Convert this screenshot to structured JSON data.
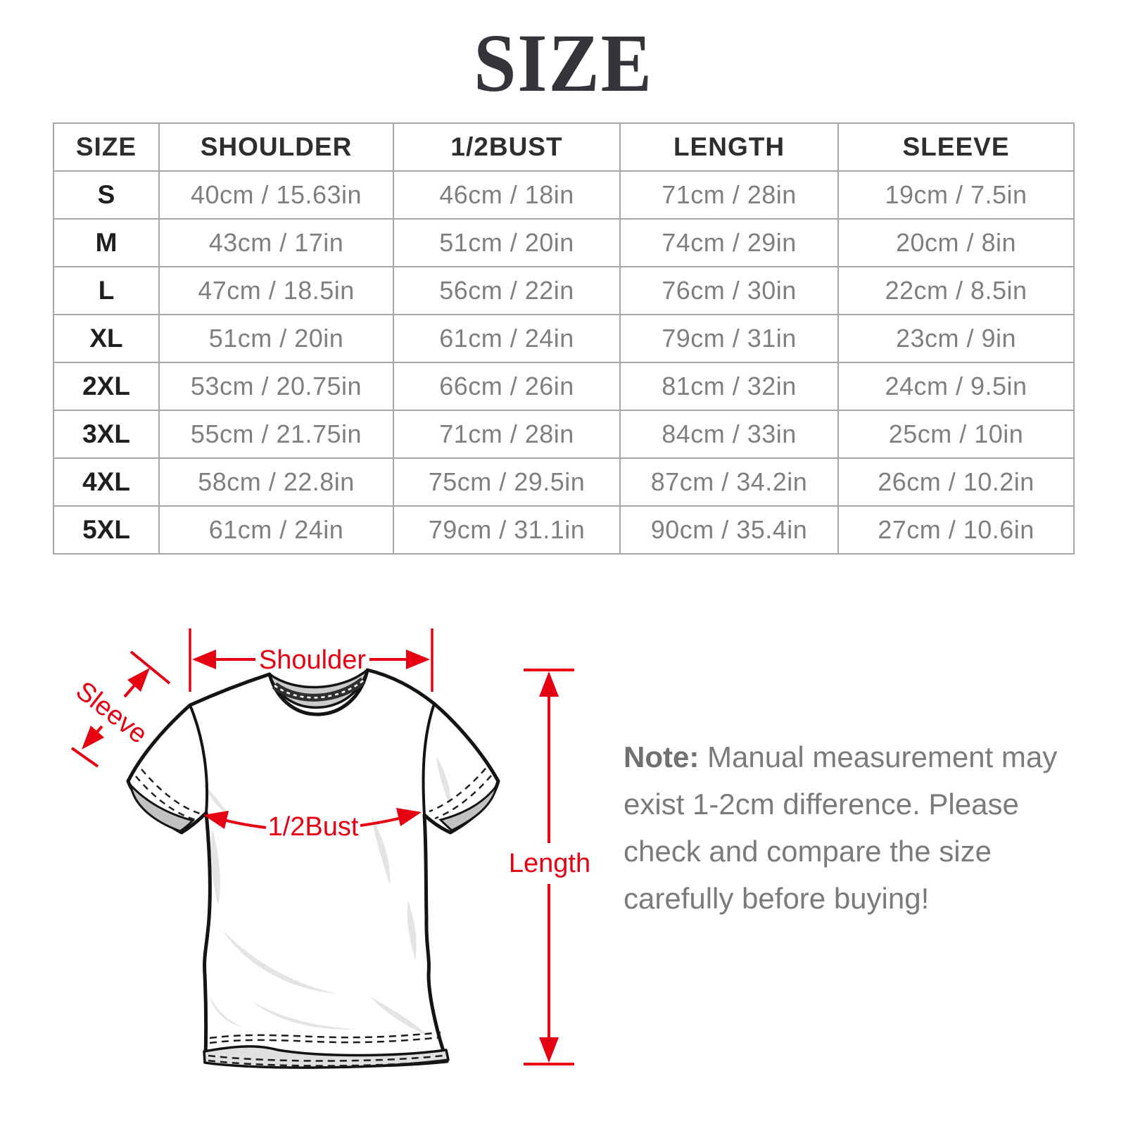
{
  "title": "SIZE",
  "table": {
    "columns": [
      "SIZE",
      "SHOULDER",
      "1/2BUST",
      "LENGTH",
      "SLEEVE"
    ],
    "rows": [
      {
        "size": "S",
        "shoulder": "40cm / 15.63in",
        "bust": "46cm / 18in",
        "length": "71cm / 28in",
        "sleeve": "19cm / 7.5in"
      },
      {
        "size": "M",
        "shoulder": "43cm / 17in",
        "bust": "51cm / 20in",
        "length": "74cm / 29in",
        "sleeve": "20cm / 8in"
      },
      {
        "size": "L",
        "shoulder": "47cm / 18.5in",
        "bust": "56cm / 22in",
        "length": "76cm / 30in",
        "sleeve": "22cm / 8.5in"
      },
      {
        "size": "XL",
        "shoulder": "51cm / 20in",
        "bust": "61cm / 24in",
        "length": "79cm / 31in",
        "sleeve": "23cm / 9in"
      },
      {
        "size": "2XL",
        "shoulder": "53cm / 20.75in",
        "bust": "66cm / 26in",
        "length": "81cm / 32in",
        "sleeve": "24cm / 9.5in"
      },
      {
        "size": "3XL",
        "shoulder": "55cm / 21.75in",
        "bust": "71cm / 28in",
        "length": "84cm / 33in",
        "sleeve": "25cm / 10in"
      },
      {
        "size": "4XL",
        "shoulder": "58cm / 22.8in",
        "bust": "75cm / 29.5in",
        "length": "87cm / 34.2in",
        "sleeve": "26cm / 10.2in"
      },
      {
        "size": "5XL",
        "shoulder": "61cm / 24in",
        "bust": "79cm / 31.1in",
        "length": "90cm / 35.4in",
        "sleeve": "27cm / 10.6in"
      }
    ]
  },
  "diagram": {
    "labels": {
      "shoulder": "Shoulder",
      "sleeve": "Sleeve",
      "bust": "1/2Bust",
      "length": "Length"
    }
  },
  "note": {
    "label": "Note:",
    "text": "Manual measurement may exist 1-2cm difference. Please check and compare the size carefully before buying!"
  },
  "colors": {
    "accent_red": "#e60012",
    "outline_black": "#141414",
    "table_border": "#a6a6a6",
    "text_dark": "#2e2e2e",
    "text_gray": "#7f7f7f"
  }
}
